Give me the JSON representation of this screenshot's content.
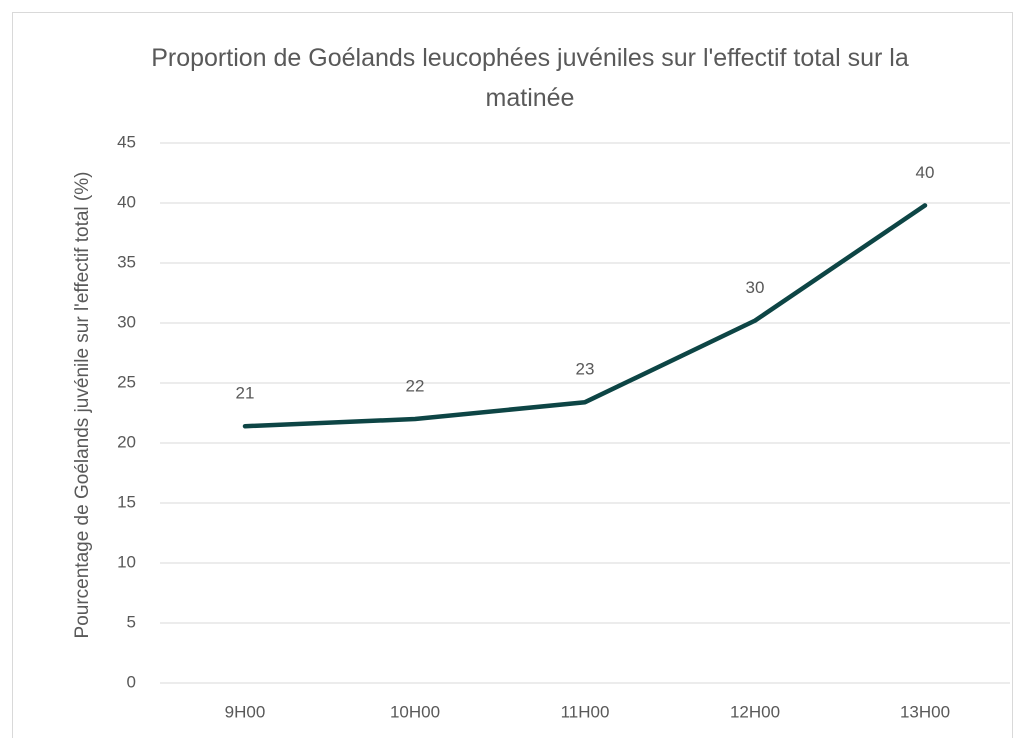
{
  "chart_data": {
    "type": "line",
    "title": "Proportion de Goélands leucophées juvéniles sur l'effectif total sur la matinée",
    "y_label": "Pourcentage de Goélands juvénile sur l'effectif total (%)",
    "categories": [
      "9H00",
      "10H00",
      "11H00",
      "12H00",
      "13H00"
    ],
    "series": [
      {
        "name": "Proportion",
        "color": "#0d4545",
        "values": [
          21.4,
          22,
          23.4,
          30.2,
          39.8
        ],
        "value_labels": [
          "21",
          "22",
          "23",
          "30",
          "40"
        ]
      }
    ],
    "ylim": [
      0,
      45
    ],
    "yticks": [
      0,
      5,
      10,
      15,
      20,
      25,
      30,
      35,
      40,
      45
    ],
    "grid": true
  }
}
